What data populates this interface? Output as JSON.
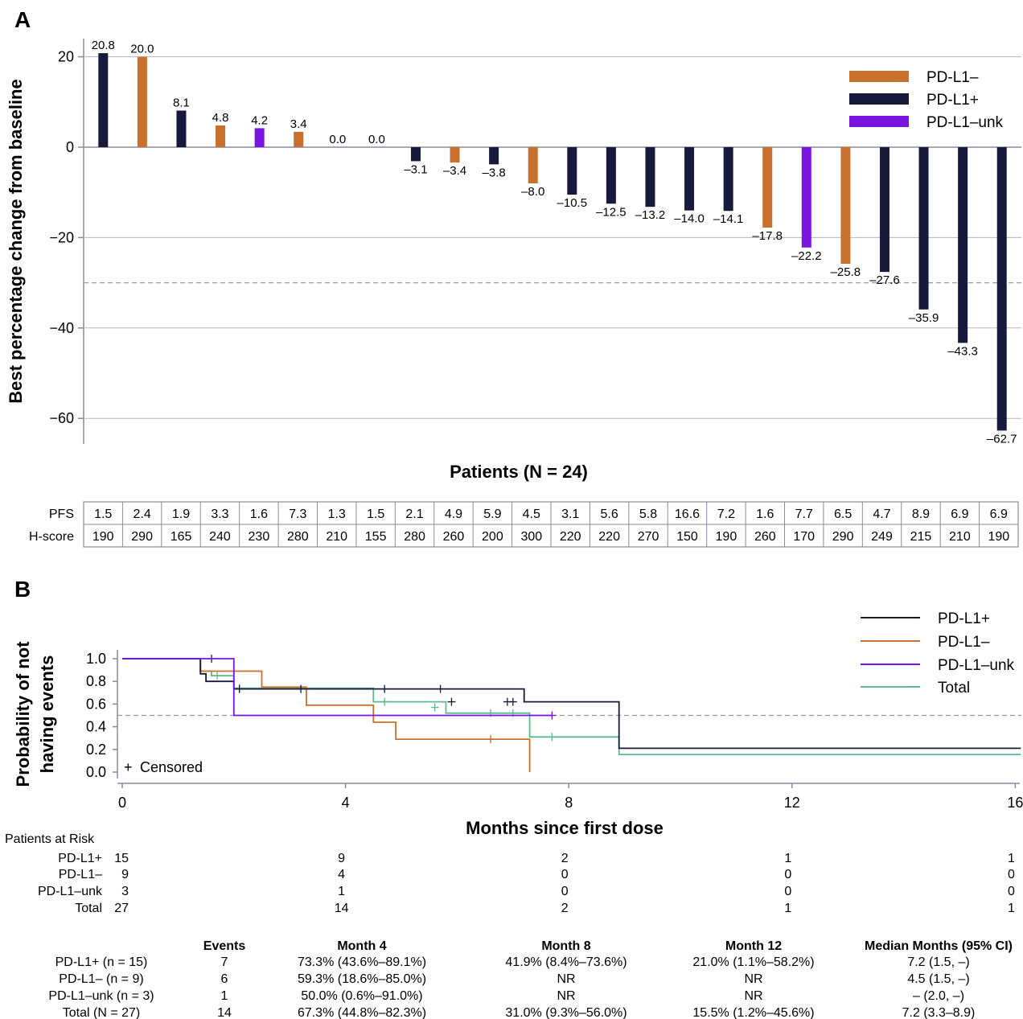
{
  "panel_a": {
    "letter": "A"
  },
  "panel_b": {
    "letter": "B"
  },
  "chart_data": [
    {
      "type": "bar",
      "xlabel": "Patients (N = 24)",
      "ylabel": "Best percentage change from baseline",
      "ylim": [
        -65,
        25
      ],
      "yticks": [
        20,
        0,
        -20,
        -40,
        -60
      ],
      "threshold": -30,
      "legend_position": "top-right",
      "series": [
        {
          "name": "PD-L1–",
          "color": "#c8702d"
        },
        {
          "name": "PD-L1+",
          "color": "#171a3a"
        },
        {
          "name": "PD-L1–unk",
          "color": "#7a15e0"
        }
      ],
      "values": [
        20.8,
        20.0,
        8.1,
        4.8,
        4.2,
        3.4,
        0.0,
        0.0,
        -3.1,
        -3.4,
        -3.8,
        -8.0,
        -10.5,
        -12.5,
        -13.2,
        -14.0,
        -14.1,
        -17.8,
        -22.2,
        -25.8,
        -27.6,
        -35.9,
        -43.3,
        -62.7
      ],
      "labels": [
        "20.8",
        "20.0",
        "8.1",
        "4.8",
        "4.2",
        "3.4",
        "0.0",
        "0.0",
        "–3.1",
        "–3.4",
        "–3.8",
        "–8.0",
        "–10.5",
        "–12.5",
        "–13.2",
        "–14.0",
        "–14.1",
        "–17.8",
        "–22.2",
        "–25.8",
        "–27.6",
        "–35.9",
        "–43.3",
        "–62.7"
      ],
      "groups": [
        1,
        0,
        1,
        0,
        2,
        0,
        1,
        1,
        1,
        0,
        1,
        0,
        1,
        1,
        1,
        1,
        1,
        0,
        2,
        0,
        1,
        1,
        1,
        1
      ],
      "table": {
        "rows": [
          {
            "label": "PFS",
            "values": [
              "1.5",
              "2.4",
              "1.9",
              "3.3",
              "1.6",
              "7.3",
              "1.3",
              "1.5",
              "2.1",
              "4.9",
              "5.9",
              "4.5",
              "3.1",
              "5.6",
              "5.8",
              "16.6",
              "7.2",
              "1.6",
              "7.7",
              "6.5",
              "4.7",
              "8.9",
              "6.9",
              "6.9"
            ]
          },
          {
            "label": "H-score",
            "values": [
              "190",
              "290",
              "165",
              "240",
              "230",
              "280",
              "210",
              "155",
              "280",
              "260",
              "200",
              "300",
              "220",
              "220",
              "270",
              "150",
              "190",
              "260",
              "170",
              "290",
              "249",
              "215",
              "210",
              "190"
            ]
          }
        ]
      }
    },
    {
      "type": "line",
      "xlabel": "Months since first dose",
      "ylabel": [
        "Probability of not",
        "having events"
      ],
      "xlim": [
        0,
        16
      ],
      "ylim": [
        0,
        1
      ],
      "xticks": [
        0,
        4,
        8,
        12,
        16
      ],
      "yticks": [
        "0.0",
        "0.2",
        "0.4",
        "0.6",
        "0.8",
        "1.0"
      ],
      "threshold": 0.5,
      "censored_label": "Censored",
      "legend_position": "top-right",
      "series": [
        {
          "name": "PD-L1+",
          "color": "#171a3a",
          "x": [
            0,
            1.4,
            1.5,
            2.0,
            5.8,
            7.2,
            8.9,
            16.1
          ],
          "y": [
            1.0,
            0.867,
            0.8,
            0.733,
            0.733,
            0.62,
            0.21,
            0.21
          ],
          "censored": [
            [
              1.6,
              1.0
            ],
            [
              2.1,
              0.733
            ],
            [
              3.2,
              0.733
            ],
            [
              4.7,
              0.733
            ],
            [
              5.7,
              0.733
            ],
            [
              5.9,
              0.62
            ],
            [
              6.9,
              0.62
            ],
            [
              7.0,
              0.62
            ]
          ]
        },
        {
          "name": "PD-L1–",
          "color": "#c8702d",
          "x": [
            0,
            1.4,
            1.6,
            2.5,
            3.3,
            4.5,
            4.9,
            7.3,
            7.3
          ],
          "y": [
            1.0,
            0.89,
            0.89,
            0.75,
            0.59,
            0.44,
            0.29,
            0.29,
            0.0
          ],
          "censored": [
            [
              6.6,
              0.29
            ]
          ]
        },
        {
          "name": "PD-L1–unk",
          "color": "#7a15e0",
          "x": [
            0,
            2.0,
            7.7
          ],
          "y": [
            1.0,
            0.5,
            0.5
          ],
          "censored": [
            [
              7.7,
              0.5
            ]
          ]
        },
        {
          "name": "Total",
          "color": "#5fb892",
          "x": [
            0,
            1.4,
            1.6,
            2.0,
            4.5,
            5.8,
            7.3,
            8.9,
            16.1
          ],
          "y": [
            1.0,
            0.89,
            0.85,
            0.74,
            0.62,
            0.52,
            0.31,
            0.155,
            0.155
          ],
          "censored": [
            [
              1.7,
              0.85
            ],
            [
              2.1,
              0.74
            ],
            [
              4.7,
              0.62
            ],
            [
              5.6,
              0.57
            ],
            [
              6.6,
              0.52
            ],
            [
              7.0,
              0.52
            ],
            [
              7.7,
              0.31
            ]
          ]
        }
      ],
      "risk_table": {
        "title": "Patients at Risk",
        "times": [
          0,
          4,
          8,
          12,
          16
        ],
        "rows": [
          {
            "label": "PD-L1+",
            "counts": [
              "15",
              "9",
              "2",
              "1",
              "1"
            ]
          },
          {
            "label": "PD-L1–",
            "counts": [
              "9",
              "4",
              "0",
              "0",
              "0"
            ]
          },
          {
            "label": "PD-L1–unk",
            "counts": [
              "3",
              "1",
              "0",
              "0",
              "0"
            ]
          },
          {
            "label": "Total",
            "counts": [
              "27",
              "14",
              "2",
              "1",
              "1"
            ]
          }
        ]
      },
      "summary_table": {
        "headers": [
          "Events",
          "Month 4",
          "Month 8",
          "Month 12",
          "Median Months (95% CI)"
        ],
        "rows": [
          {
            "label": "PD-L1+ (n = 15)",
            "cells": [
              "7",
              "73.3% (43.6%–89.1%)",
              "41.9% (8.4%–73.6%)",
              "21.0% (1.1%–58.2%)",
              "7.2 (1.5, –)"
            ]
          },
          {
            "label": "PD-L1– (n = 9)",
            "cells": [
              "6",
              "59.3% (18.6%–85.0%)",
              "NR",
              "NR",
              "4.5 (1.5, –)"
            ]
          },
          {
            "label": "PD-L1–unk (n = 3)",
            "cells": [
              "1",
              "50.0% (0.6%–91.0%)",
              "NR",
              "NR",
              "– (2.0, –)"
            ]
          },
          {
            "label": "Total (N = 27)",
            "cells": [
              "14",
              "67.3% (44.8%–82.3%)",
              "31.0% (9.3%–56.0%)",
              "15.5% (1.2%–45.6%)",
              "7.2 (3.3–8.9)"
            ]
          }
        ]
      }
    }
  ]
}
